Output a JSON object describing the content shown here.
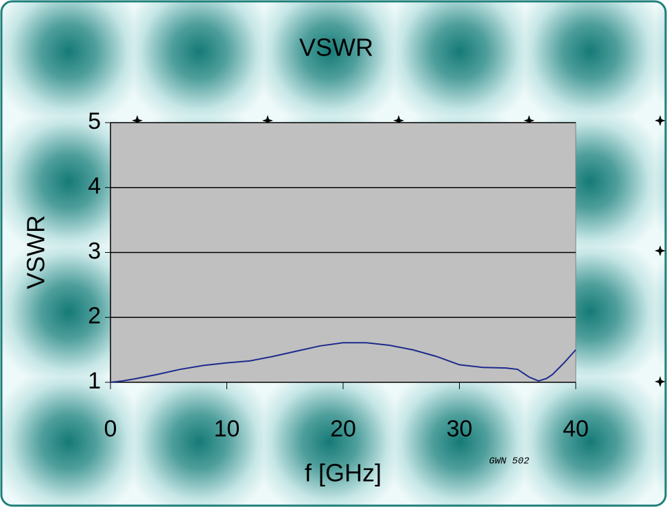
{
  "chart_data": {
    "type": "line",
    "title": "VSWR",
    "x_label": "f [GHz]",
    "y_label": "VSWR",
    "annotation": "GWN 502",
    "x": [
      0,
      1,
      2,
      4,
      6,
      8,
      10,
      12,
      14,
      16,
      18,
      20,
      22,
      24,
      26,
      28,
      30,
      32,
      34,
      35,
      36,
      36.8,
      37.5,
      38,
      39,
      40
    ],
    "values": [
      1.0,
      1.02,
      1.05,
      1.12,
      1.2,
      1.26,
      1.3,
      1.33,
      1.4,
      1.48,
      1.56,
      1.61,
      1.61,
      1.57,
      1.5,
      1.4,
      1.27,
      1.23,
      1.22,
      1.2,
      1.08,
      1.02,
      1.06,
      1.12,
      1.3,
      1.5
    ],
    "color": "#1c2a8c",
    "xlim": [
      0,
      40
    ],
    "xticks": [
      0,
      10,
      20,
      30,
      40
    ],
    "ylim": [
      1,
      5
    ],
    "yticks": [
      1,
      2,
      3,
      4,
      5
    ],
    "grid": true
  }
}
